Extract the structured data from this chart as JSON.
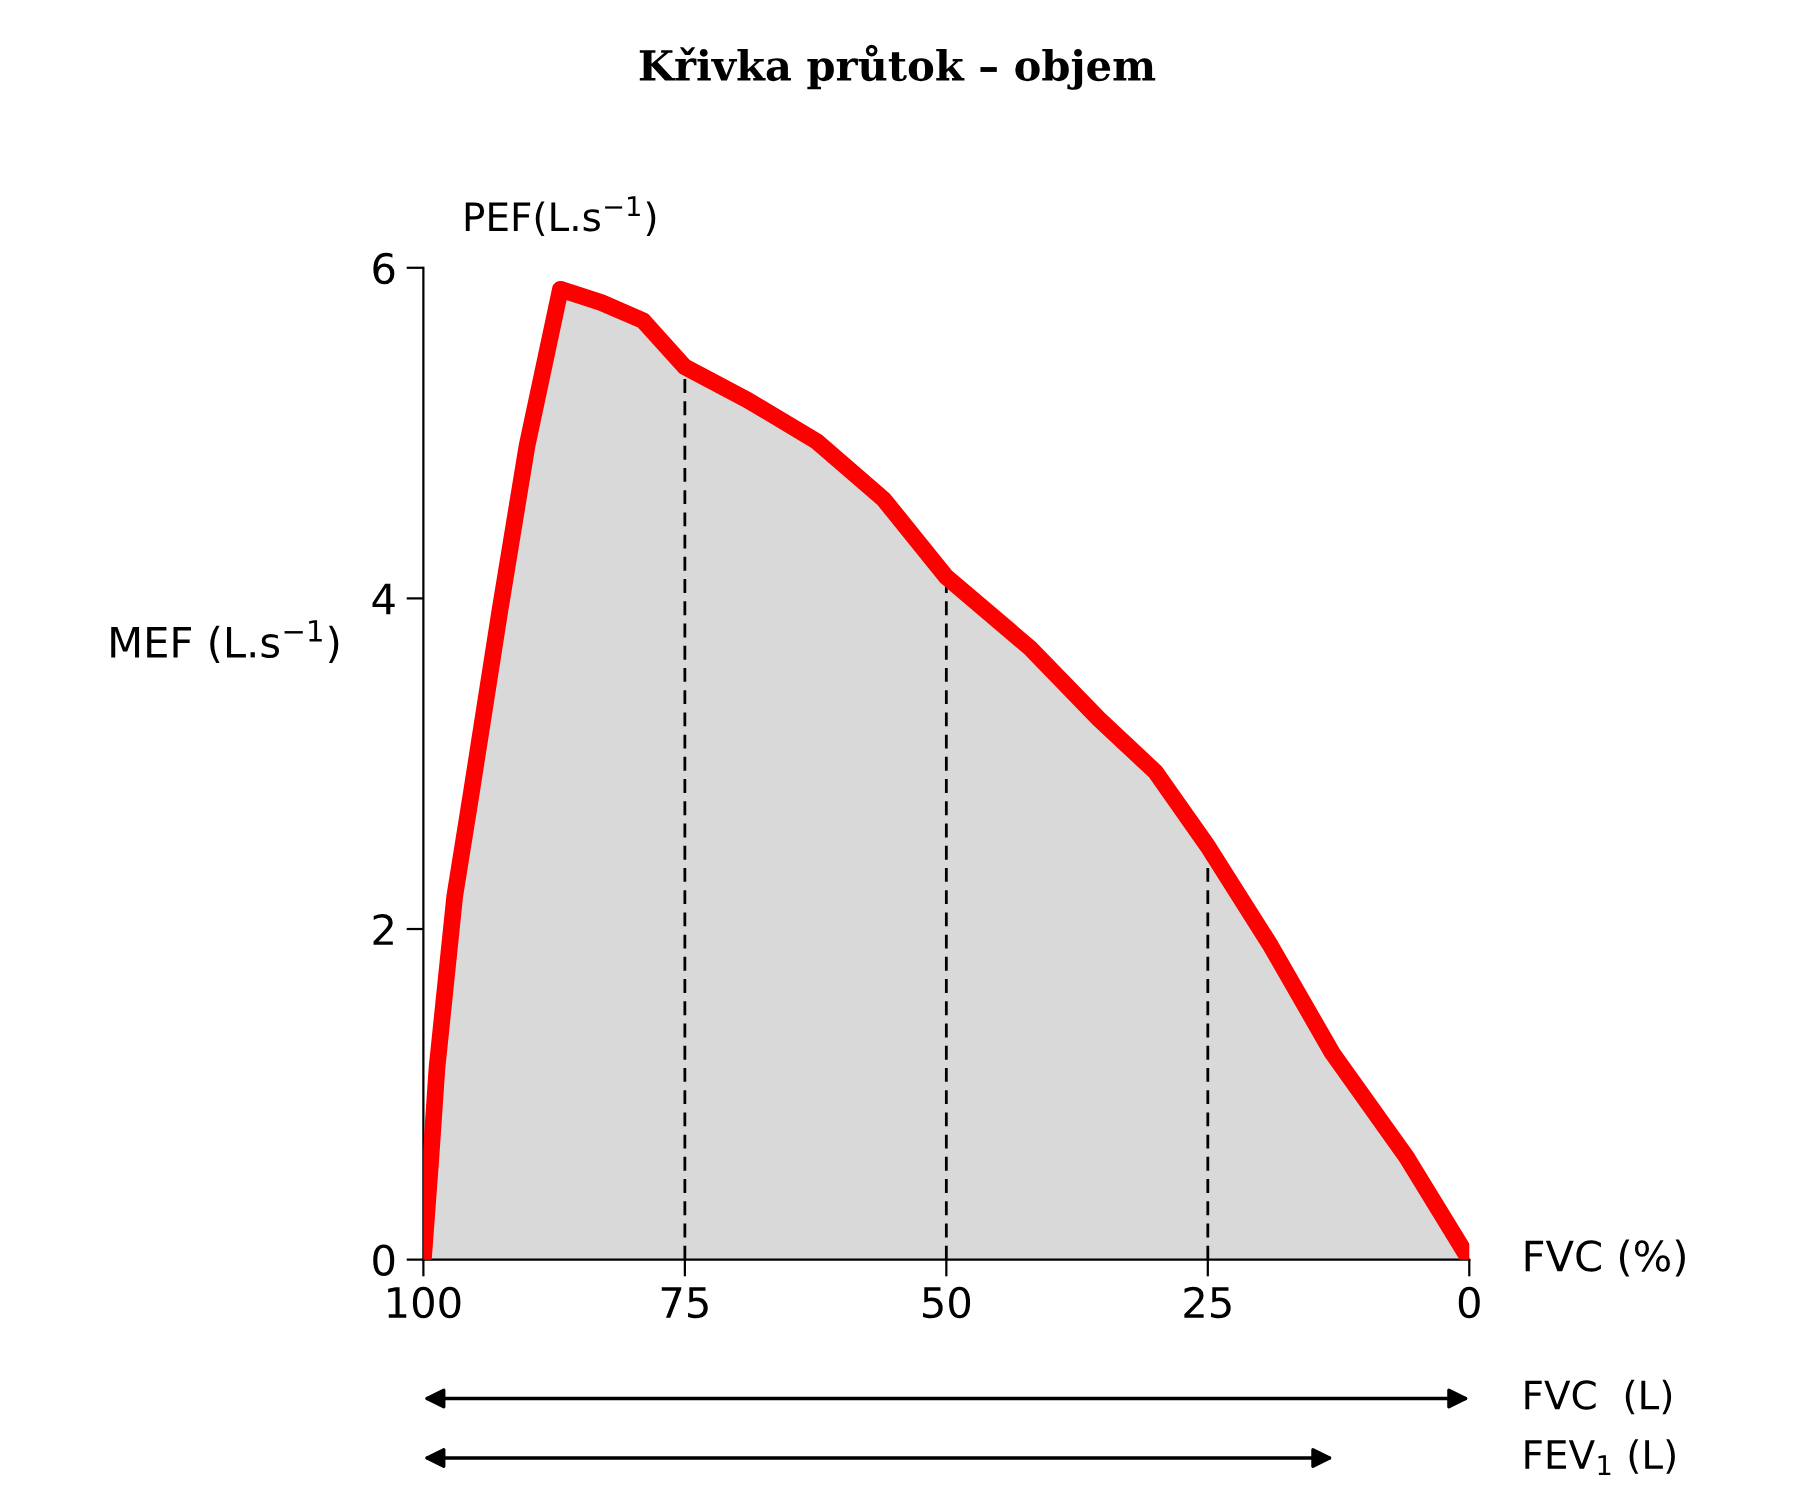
{
  "chart_data": {
    "type": "area",
    "title": "Křivka průtok – objem",
    "xlabel": "FVC (%)",
    "ylabel": "MEF (L.s$^{−1}$)",
    "xlim": [
      100,
      0
    ],
    "ylim": [
      0,
      6
    ],
    "xticks": [
      100,
      75,
      50,
      25,
      0
    ],
    "yticks": [
      0,
      2,
      4,
      6
    ],
    "legend": false,
    "series": [
      {
        "color": "#ff0000",
        "x": [
          100,
          99.3,
          98.7,
          97.0,
          95.4,
          92.7,
          90.1,
          86.9,
          83,
          79.0,
          75,
          69,
          62.4,
          56,
          50,
          42,
          35.4,
          30,
          25,
          19,
          13.1,
          6,
          0
        ],
        "values": [
          0,
          0.6,
          1.16,
          2.2,
          2.83,
          3.92,
          4.92,
          5.87,
          5.79,
          5.68,
          5.4,
          5.2,
          4.95,
          4.6,
          4.13,
          3.7,
          3.27,
          2.95,
          2.5,
          1.9,
          1.25,
          0.62,
          0
        ]
      }
    ],
    "ref_lines": [
      {
        "axis": "x",
        "value": 75,
        "color": "#000000",
        "line_style": "dashed"
      },
      {
        "axis": "x",
        "value": 50,
        "color": "#000000",
        "line_style": "dashed"
      },
      {
        "axis": "x",
        "value": 25,
        "color": "#000000",
        "line_style": "dashed"
      }
    ],
    "annotations": [
      {
        "text": "PEF(L.s$^{−1}$)",
        "x": 86.9,
        "y": 5.87
      },
      "FVC  (L)",
      "FEV$_{1}$ (L)"
    ]
  }
}
